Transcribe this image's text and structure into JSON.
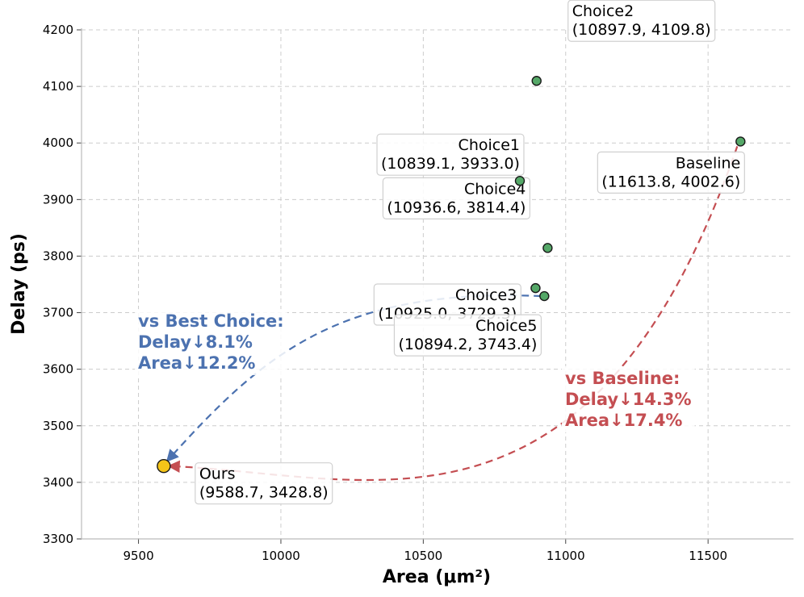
{
  "chart_data": {
    "type": "scatter",
    "xlabel": "Area (μm²)",
    "ylabel": "Delay (ps)",
    "xlim": [
      9300,
      11800
    ],
    "ylim": [
      3300,
      4200
    ],
    "x_ticks": [
      9500,
      10000,
      10500,
      11000,
      11500
    ],
    "y_ticks": [
      3300,
      3400,
      3500,
      3600,
      3700,
      3800,
      3900,
      4000,
      4100,
      4200
    ],
    "grid": true,
    "points": [
      {
        "name": "Ours",
        "coords": "(9588.7, 3428.8)",
        "x": 9588.7,
        "y": 3428.8,
        "color": "#f5c518"
      },
      {
        "name": "Choice1",
        "coords": "(10839.1, 3933.0)",
        "x": 10839.1,
        "y": 3933.0,
        "color": "#55a868"
      },
      {
        "name": "Choice2",
        "coords": "(10897.9, 4109.8)",
        "x": 10897.9,
        "y": 4109.8,
        "color": "#55a868"
      },
      {
        "name": "Choice3",
        "coords": "(10925.0, 3729.3)",
        "x": 10925.0,
        "y": 3729.3,
        "color": "#55a868"
      },
      {
        "name": "Choice4",
        "coords": "(10936.6, 3814.4)",
        "x": 10936.6,
        "y": 3814.4,
        "color": "#55a868"
      },
      {
        "name": "Choice5",
        "coords": "(10894.2, 3743.4)",
        "x": 10894.2,
        "y": 3743.4,
        "color": "#55a868"
      },
      {
        "name": "Baseline",
        "coords": "(11613.8, 4002.6)",
        "x": 11613.8,
        "y": 4002.6,
        "color": "#55a868"
      }
    ],
    "comparisons": [
      {
        "lines": [
          "vs Best Choice:",
          "Delay↓8.1%",
          "Area↓12.2%"
        ],
        "color": "#4c72b0"
      },
      {
        "lines": [
          "vs Baseline:",
          "Delay↓14.3%",
          "Area↓17.4%"
        ],
        "color": "#c44e52"
      }
    ]
  }
}
